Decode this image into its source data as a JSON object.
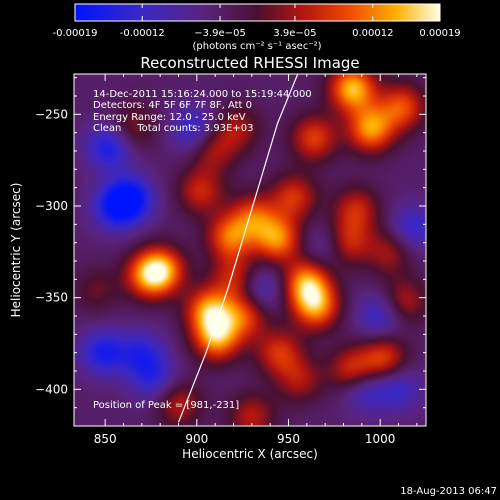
{
  "chart_data": {
    "type": "heatmap",
    "title": "Reconstructed RHESSI Image",
    "xlabel": "Heliocentric X (arcsec)",
    "ylabel": "Heliocentric Y (arcsec)",
    "xlim": [
      833,
      1025
    ],
    "ylim": [
      -420,
      -228
    ],
    "x_ticks": [
      850,
      900,
      950,
      1000
    ],
    "y_ticks": [
      -250,
      -300,
      -350,
      -400
    ],
    "colorbar": {
      "range": [
        -0.00019,
        0.00019
      ],
      "tick_values": [
        -0.00019,
        -0.00012,
        -3.9e-05,
        3.9e-05,
        0.00012,
        0.00019
      ],
      "tick_labels": [
        "-0.00019",
        "-0.00012",
        "−3.9e−05",
        "3.9e−05",
        "0.00012",
        "0.00019"
      ],
      "units": "(photons cm⁻² s⁻¹ asec⁻²)"
    },
    "annotations": [
      "14-Dec-2011 15:16:24.000 to 15:19:44.000",
      "Detectors: 4F 5F 6F 7F 8F, Att 0",
      "Energy Range: 12.0 - 25.0 keV",
      "Clean     Total counts: 3.93E+03"
    ],
    "peak_label": "Position of Peak = [981,-231]",
    "limb": [
      [
        890,
        -418
      ],
      [
        905,
        -380
      ],
      [
        917,
        -345
      ],
      [
        926,
        -315
      ],
      [
        935,
        -285
      ],
      [
        944,
        -255
      ],
      [
        955,
        -228
      ]
    ],
    "sources": [
      {
        "x": 985,
        "y": -236,
        "v": 0.00019
      },
      {
        "x": 995,
        "y": -258,
        "v": 0.00017
      },
      {
        "x": 1012,
        "y": -246,
        "v": 0.00013
      },
      {
        "x": 964,
        "y": -263,
        "v": 0.00012
      },
      {
        "x": 953,
        "y": -295,
        "v": 0.00011
      },
      {
        "x": 944,
        "y": -318,
        "v": 0.00016
      },
      {
        "x": 960,
        "y": -342,
        "v": 0.00017
      },
      {
        "x": 965,
        "y": -355,
        "v": 0.00016
      },
      {
        "x": 982,
        "y": -320,
        "v": 0.00011
      },
      {
        "x": 987,
        "y": -302,
        "v": 0.0001
      },
      {
        "x": 1005,
        "y": -325,
        "v": 8e-05
      },
      {
        "x": 918,
        "y": -317,
        "v": 0.00014
      },
      {
        "x": 931,
        "y": -306,
        "v": 0.00012
      },
      {
        "x": 902,
        "y": -292,
        "v": 0.0001
      },
      {
        "x": 909,
        "y": -270,
        "v": 8e-05
      },
      {
        "x": 922,
        "y": -258,
        "v": 8e-05
      },
      {
        "x": 881,
        "y": -335,
        "v": 0.00016
      },
      {
        "x": 873,
        "y": -338,
        "v": 0.00013
      },
      {
        "x": 907,
        "y": -357,
        "v": 0.00017
      },
      {
        "x": 911,
        "y": -372,
        "v": 0.00017
      },
      {
        "x": 926,
        "y": -360,
        "v": 0.00012
      },
      {
        "x": 921,
        "y": -339,
        "v": 0.0001
      },
      {
        "x": 945,
        "y": -380,
        "v": 0.00011
      },
      {
        "x": 956,
        "y": -395,
        "v": 8e-05
      },
      {
        "x": 985,
        "y": -390,
        "v": 0.00012
      },
      {
        "x": 1002,
        "y": -383,
        "v": 0.00012
      },
      {
        "x": 1013,
        "y": -352,
        "v": 9e-05
      },
      {
        "x": 865,
        "y": -257,
        "v": 7e-05
      },
      {
        "x": 890,
        "y": -408,
        "v": 9e-05
      },
      {
        "x": 930,
        "y": -415,
        "v": 9e-05
      },
      {
        "x": 845,
        "y": -346,
        "v": 5e-05
      },
      {
        "x": 852,
        "y": -268,
        "v": -0.00012
      },
      {
        "x": 855,
        "y": -301,
        "v": -0.00011
      },
      {
        "x": 864,
        "y": -296,
        "v": -0.00014
      },
      {
        "x": 849,
        "y": -380,
        "v": -0.00012
      },
      {
        "x": 870,
        "y": -380,
        "v": -9e-05
      },
      {
        "x": 876,
        "y": -394,
        "v": -9e-05
      },
      {
        "x": 898,
        "y": -258,
        "v": -9e-05
      },
      {
        "x": 935,
        "y": -345,
        "v": -8e-05
      },
      {
        "x": 1000,
        "y": -360,
        "v": -9e-05
      },
      {
        "x": 1018,
        "y": -312,
        "v": -9e-05
      },
      {
        "x": 971,
        "y": -322,
        "v": -6e-05
      },
      {
        "x": 991,
        "y": -400,
        "v": -9e-05
      },
      {
        "x": 1010,
        "y": -400,
        "v": -8e-05
      }
    ]
  },
  "footer": {
    "timestamp": "18-Aug-2013 06:47"
  }
}
